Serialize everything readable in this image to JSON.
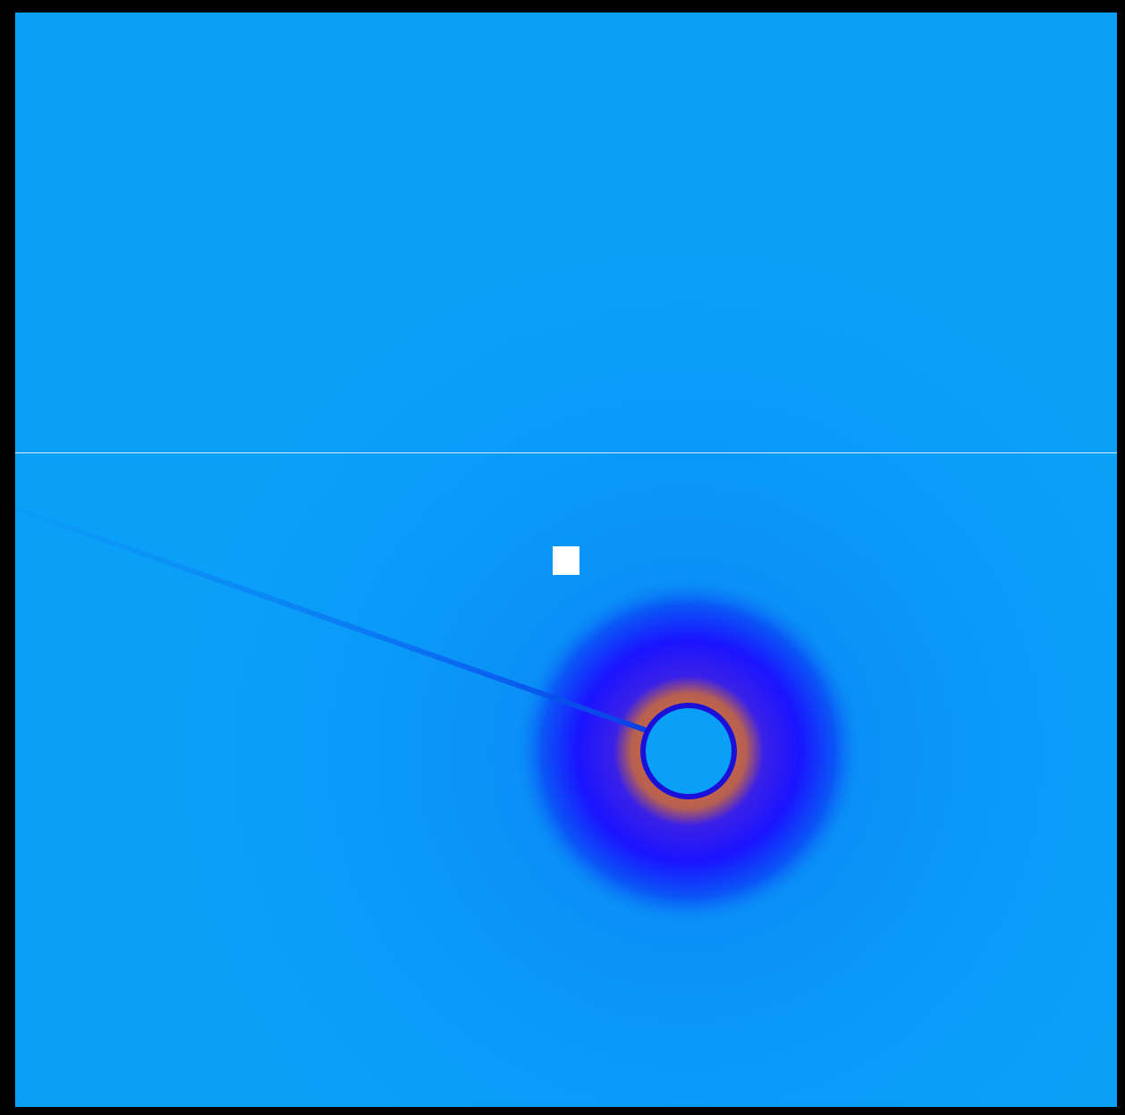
{
  "image": {
    "kind": "scattering-detector-pattern",
    "colors": {
      "frame": "#000000",
      "background": "#0aa0f8",
      "halo_inner": "#c96a3a",
      "halo_mid": "#2a1cff",
      "halo_outer": "#0a4cf6",
      "beamstop": "#0aa0f8",
      "beamstop_edge": "#1a10d8",
      "beamstop_arm": "#0c74f2",
      "gap_line": "#d8e8ff",
      "marker": "#ffffff"
    },
    "elements": [
      "detector-frame",
      "detector-background",
      "module-gap-line",
      "scattering-halo",
      "beamstop-arm",
      "beamstop",
      "reference-marker"
    ]
  }
}
